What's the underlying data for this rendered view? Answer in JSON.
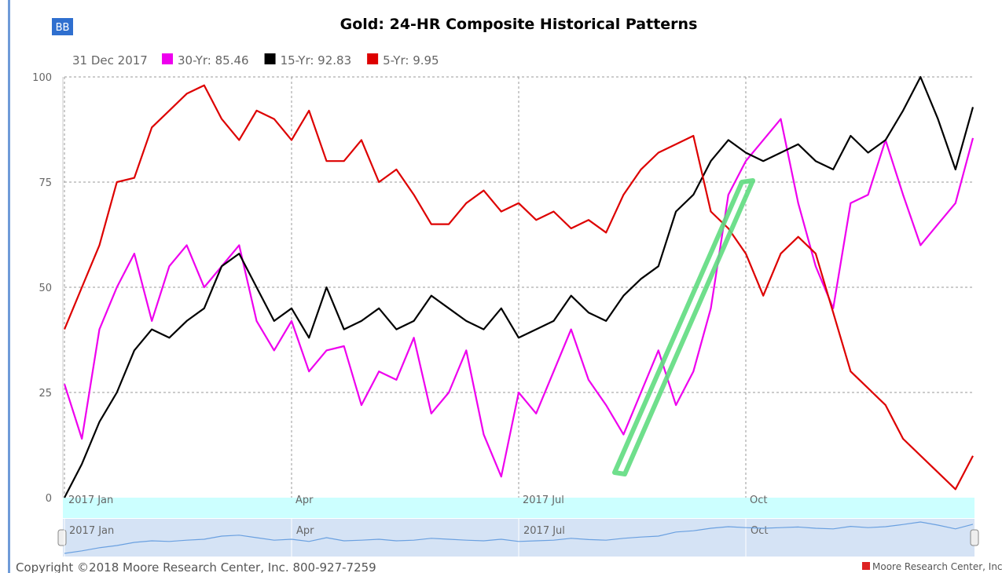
{
  "chart_data": {
    "type": "line",
    "title": "Gold: 24-HR Composite Historical Patterns",
    "button": "BB",
    "legend_date": "31 Dec 2017",
    "categories": [
      "2017 Jan",
      null,
      null,
      null,
      null,
      null,
      null,
      null,
      null,
      null,
      null,
      null,
      null,
      "Apr",
      null,
      null,
      null,
      null,
      null,
      null,
      null,
      null,
      null,
      null,
      null,
      null,
      "2017 Jul",
      null,
      null,
      null,
      null,
      null,
      null,
      null,
      null,
      null,
      null,
      null,
      null,
      "Oct",
      null,
      null,
      null,
      null,
      null,
      null,
      null,
      null,
      null,
      null,
      null,
      null,
      null
    ],
    "series": [
      {
        "name": "30-Yr",
        "label": "30-Yr: 85.46",
        "color": "#ee00ee",
        "values": [
          27,
          14,
          40,
          50,
          58,
          42,
          55,
          60,
          50,
          55,
          60,
          42,
          35,
          42,
          30,
          35,
          36,
          22,
          30,
          28,
          38,
          20,
          25,
          35,
          15,
          5,
          25,
          20,
          30,
          40,
          28,
          22,
          15,
          25,
          35,
          22,
          30,
          45,
          72,
          80,
          85,
          90,
          70,
          55,
          45,
          70,
          72,
          85,
          72,
          60,
          65,
          70,
          85.46
        ]
      },
      {
        "name": "15-Yr",
        "label": "15-Yr: 92.83",
        "color": "#000000",
        "values": [
          0,
          8,
          18,
          25,
          35,
          40,
          38,
          42,
          45,
          55,
          58,
          50,
          42,
          45,
          38,
          50,
          40,
          42,
          45,
          40,
          42,
          48,
          45,
          42,
          40,
          45,
          38,
          40,
          42,
          48,
          44,
          42,
          48,
          52,
          55,
          68,
          72,
          80,
          85,
          82,
          80,
          82,
          84,
          80,
          78,
          86,
          82,
          85,
          92,
          100,
          90,
          78,
          92.83
        ]
      },
      {
        "name": "5-Yr",
        "label": "5-Yr: 9.95",
        "color": "#dd0000",
        "values": [
          40,
          50,
          60,
          75,
          76,
          88,
          92,
          96,
          98,
          90,
          85,
          92,
          90,
          85,
          92,
          80,
          80,
          85,
          75,
          78,
          72,
          65,
          65,
          70,
          73,
          68,
          70,
          66,
          68,
          64,
          66,
          63,
          72,
          78,
          82,
          84,
          86,
          68,
          64,
          58,
          48,
          58,
          62,
          58,
          44,
          30,
          26,
          22,
          14,
          10,
          6,
          2,
          9.95
        ]
      }
    ],
    "ylim": [
      0,
      100
    ],
    "yticks": [
      0,
      25,
      50,
      75,
      100
    ],
    "grid": true,
    "navigator_series": 1,
    "footer": "Copyright ©2018 Moore Research Center, Inc. 800-927-7259",
    "credit": "Moore Research Center, Inc."
  }
}
